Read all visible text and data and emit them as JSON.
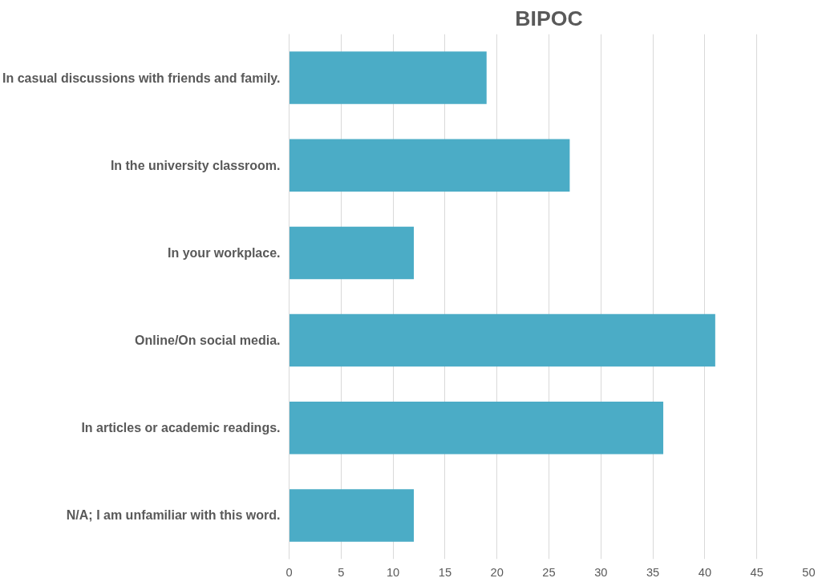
{
  "chart_data": {
    "type": "bar",
    "orientation": "horizontal",
    "title": "BIPOC",
    "categories": [
      "In casual discussions with friends and family.",
      "In the university classroom.",
      "In your workplace.",
      "Online/On social media.",
      "In articles or academic readings.",
      "N/A; I am unfamiliar with this word."
    ],
    "values": [
      19,
      27,
      12,
      41,
      36,
      12
    ],
    "color": "#4bacc6",
    "xlim": [
      0,
      50
    ],
    "xticks": [
      0,
      5,
      10,
      15,
      20,
      25,
      30,
      35,
      40,
      45,
      50
    ],
    "grid": "x"
  }
}
